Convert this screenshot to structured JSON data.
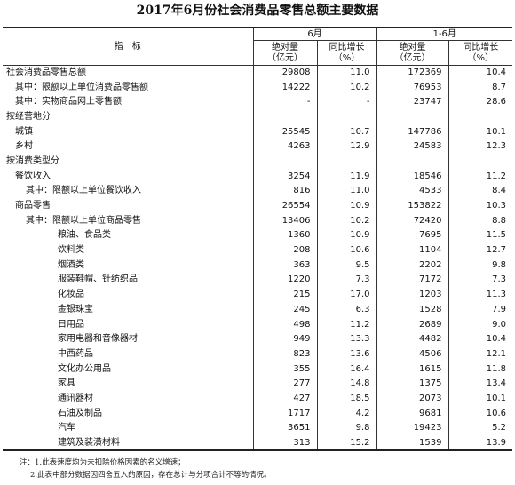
{
  "title": "2017年6月份社会消费品零售总额主要数据",
  "header": {
    "indicator": "指　标",
    "group_june": "6月",
    "group_h1": "1-6月",
    "abs_line1": "绝对量",
    "abs_line2": "（亿元）",
    "yoy_line1": "同比增长",
    "yoy_line2": "（%）"
  },
  "rows": [
    {
      "indent": 0,
      "name": "社会消费品零售总额",
      "jun_abs": "29808",
      "jun_yoy": "11.0",
      "h1_abs": "172369",
      "h1_yoy": "10.4"
    },
    {
      "indent": 1,
      "name": "其中：限额以上单位消费品零售额",
      "jun_abs": "14222",
      "jun_yoy": "10.2",
      "h1_abs": "76953",
      "h1_yoy": "8.7"
    },
    {
      "indent": 1,
      "name": "其中：实物商品网上零售额",
      "jun_abs": "-",
      "jun_yoy": "-",
      "h1_abs": "23747",
      "h1_yoy": "28.6"
    },
    {
      "indent": 0,
      "name": "按经营地分",
      "jun_abs": "",
      "jun_yoy": "",
      "h1_abs": "",
      "h1_yoy": ""
    },
    {
      "indent": 1,
      "name": "城镇",
      "jun_abs": "25545",
      "jun_yoy": "10.7",
      "h1_abs": "147786",
      "h1_yoy": "10.1"
    },
    {
      "indent": 1,
      "name": "乡村",
      "jun_abs": "4263",
      "jun_yoy": "12.9",
      "h1_abs": "24583",
      "h1_yoy": "12.3"
    },
    {
      "indent": 0,
      "name": "按消费类型分",
      "jun_abs": "",
      "jun_yoy": "",
      "h1_abs": "",
      "h1_yoy": ""
    },
    {
      "indent": 1,
      "name": "餐饮收入",
      "jun_abs": "3254",
      "jun_yoy": "11.9",
      "h1_abs": "18546",
      "h1_yoy": "11.2"
    },
    {
      "indent": 2,
      "name": "其中：限额以上单位餐饮收入",
      "jun_abs": "816",
      "jun_yoy": "11.0",
      "h1_abs": "4533",
      "h1_yoy": "8.4"
    },
    {
      "indent": 1,
      "name": "商品零售",
      "jun_abs": "26554",
      "jun_yoy": "10.9",
      "h1_abs": "153822",
      "h1_yoy": "10.3"
    },
    {
      "indent": 2,
      "name": "其中：限额以上单位商品零售",
      "jun_abs": "13406",
      "jun_yoy": "10.2",
      "h1_abs": "72420",
      "h1_yoy": "8.8"
    },
    {
      "indent": 3,
      "name": "粮油、食品类",
      "jun_abs": "1360",
      "jun_yoy": "10.9",
      "h1_abs": "7695",
      "h1_yoy": "11.5"
    },
    {
      "indent": 3,
      "name": "饮料类",
      "jun_abs": "208",
      "jun_yoy": "10.6",
      "h1_abs": "1104",
      "h1_yoy": "12.7"
    },
    {
      "indent": 3,
      "name": "烟酒类",
      "jun_abs": "363",
      "jun_yoy": "9.5",
      "h1_abs": "2202",
      "h1_yoy": "9.8"
    },
    {
      "indent": 3,
      "name": "服装鞋帽、针纺织品",
      "jun_abs": "1220",
      "jun_yoy": "7.3",
      "h1_abs": "7172",
      "h1_yoy": "7.3"
    },
    {
      "indent": 3,
      "name": "化妆品",
      "jun_abs": "215",
      "jun_yoy": "17.0",
      "h1_abs": "1203",
      "h1_yoy": "11.3"
    },
    {
      "indent": 3,
      "name": "金银珠宝",
      "jun_abs": "245",
      "jun_yoy": "6.3",
      "h1_abs": "1528",
      "h1_yoy": "7.9"
    },
    {
      "indent": 3,
      "name": "日用品",
      "jun_abs": "498",
      "jun_yoy": "11.2",
      "h1_abs": "2689",
      "h1_yoy": "9.0"
    },
    {
      "indent": 3,
      "name": "家用电器和音像器材",
      "jun_abs": "949",
      "jun_yoy": "13.3",
      "h1_abs": "4482",
      "h1_yoy": "10.4"
    },
    {
      "indent": 3,
      "name": "中西药品",
      "jun_abs": "823",
      "jun_yoy": "13.6",
      "h1_abs": "4506",
      "h1_yoy": "12.1"
    },
    {
      "indent": 3,
      "name": "文化办公用品",
      "jun_abs": "355",
      "jun_yoy": "16.4",
      "h1_abs": "1615",
      "h1_yoy": "11.8"
    },
    {
      "indent": 3,
      "name": "家具",
      "jun_abs": "277",
      "jun_yoy": "14.8",
      "h1_abs": "1375",
      "h1_yoy": "13.4"
    },
    {
      "indent": 3,
      "name": "通讯器材",
      "jun_abs": "427",
      "jun_yoy": "18.5",
      "h1_abs": "2073",
      "h1_yoy": "10.1"
    },
    {
      "indent": 3,
      "name": "石油及制品",
      "jun_abs": "1717",
      "jun_yoy": "4.2",
      "h1_abs": "9681",
      "h1_yoy": "10.6"
    },
    {
      "indent": 3,
      "name": "汽车",
      "jun_abs": "3651",
      "jun_yoy": "9.8",
      "h1_abs": "19423",
      "h1_yoy": "5.2"
    },
    {
      "indent": 3,
      "name": "建筑及装潢材料",
      "jun_abs": "313",
      "jun_yoy": "15.2",
      "h1_abs": "1539",
      "h1_yoy": "13.9"
    }
  ],
  "notes": [
    "注：1.此表速度均为未扣除价格因素的名义增速；",
    "2.此表中部分数据因四舍五入的原因，存在总计与分项合计不等的情况。"
  ]
}
